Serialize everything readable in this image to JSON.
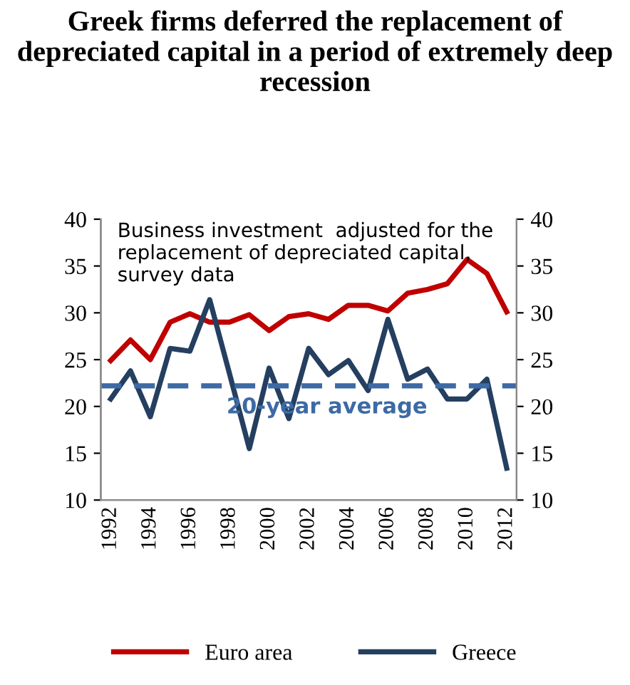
{
  "chart_data": {
    "type": "line",
    "title": "Greek firms deferred the replacement of depreciated capital in a period of extremely deep recession",
    "categories": [
      "1992",
      null,
      "1994",
      null,
      "1996",
      null,
      "1998",
      null,
      "2000",
      null,
      "2002",
      null,
      "2004",
      null,
      "2006",
      null,
      "2008",
      null,
      "2010",
      null,
      "2012"
    ],
    "series": [
      {
        "name": "Euro area",
        "color": "#c00000",
        "values": [
          24.9,
          27.1,
          25.0,
          29.0,
          29.9,
          29.0,
          29.0,
          29.8,
          28.1,
          29.6,
          29.9,
          29.3,
          30.8,
          30.8,
          30.2,
          32.1,
          32.5,
          33.1,
          35.7,
          34.2,
          30.1
        ]
      },
      {
        "name": "Greece",
        "color": "#243f60",
        "values": [
          20.8,
          23.8,
          18.9,
          26.2,
          25.9,
          31.4,
          23.5,
          15.5,
          24.1,
          18.7,
          26.2,
          23.4,
          24.9,
          21.7,
          29.3,
          22.9,
          24.0,
          20.8,
          20.8,
          22.9,
          13.4
        ]
      }
    ],
    "ylim": [
      10,
      40
    ],
    "yticks": [
      10,
      15,
      20,
      25,
      30,
      35,
      40
    ],
    "y2lim": [
      10,
      40
    ],
    "y2ticks": [
      10,
      15,
      20,
      25,
      30,
      35,
      40
    ],
    "ref_lines": [
      {
        "axis": "y",
        "value": 22.2,
        "label": "20-year average",
        "color": "#3d6aa5",
        "line_style": "dashed"
      }
    ],
    "annotations": [
      "Business investment  adjusted for the replacement of depreciated capital, survey data"
    ],
    "legend": "bottom",
    "grid": false
  }
}
